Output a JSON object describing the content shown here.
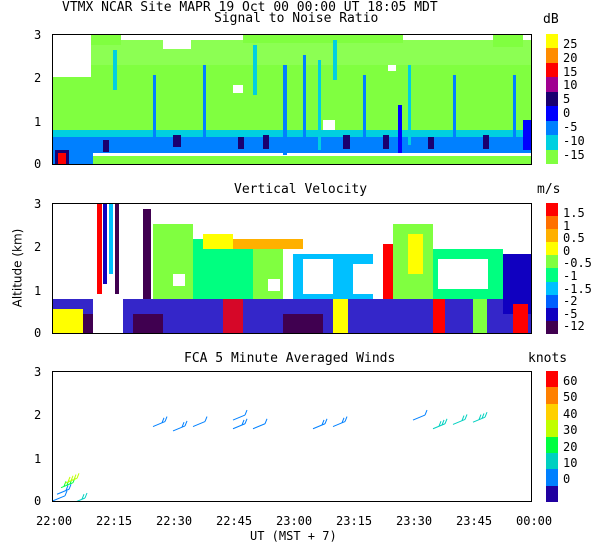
{
  "header": {
    "line1": "VTMX  NCAR Site  MAPR 19 Oct 00  00:00 UT  18:05  MDT"
  },
  "chart_data": [
    {
      "type": "heatmap",
      "title": "Signal to Noise Ratio",
      "unit": "dB",
      "xlabel": "UT  (MST + 7)",
      "ylabel": "Altitude (km)",
      "ylim": [
        0,
        3
      ],
      "yticks": [
        "0",
        "1",
        "2",
        "3"
      ],
      "colorbar": {
        "labels": [
          "25",
          "20",
          "15",
          "10",
          "5",
          "0",
          "-5",
          "-10",
          "-15"
        ],
        "colors": [
          "#ffff00",
          "#ff8c00",
          "#ff0000",
          "#a00090",
          "#1a0070",
          "#0000ff",
          "#0080ff",
          "#00d0e0",
          "#80ff40"
        ]
      }
    },
    {
      "type": "heatmap",
      "title": "Vertical Velocity",
      "unit": "m/s",
      "ylabel": "Altitude (km)",
      "ylim": [
        0,
        3
      ],
      "yticks": [
        "0",
        "1",
        "2",
        "3"
      ],
      "colorbar": {
        "labels": [
          "1.5",
          "1",
          "0.5",
          "0",
          "-0.5",
          "-1",
          "-1.5",
          "-2",
          "-5",
          "-12"
        ],
        "colors": [
          "#ff0000",
          "#ff7000",
          "#ffb000",
          "#ffff00",
          "#80ff40",
          "#00ff80",
          "#00c0ff",
          "#0060ff",
          "#1000c0",
          "#400050"
        ]
      }
    },
    {
      "type": "scatter",
      "title": "FCA 5 Minute Averaged Winds",
      "unit": "knots",
      "ylim": [
        0,
        3
      ],
      "yticks": [
        "0",
        "1",
        "2",
        "3"
      ],
      "xticks": [
        "22:00",
        "22:15",
        "22:30",
        "22:45",
        "23:00",
        "23:15",
        "23:30",
        "23:45",
        "00:00"
      ],
      "colorbar": {
        "labels": [
          "60",
          "50",
          "40",
          "30",
          "20",
          "10",
          "0"
        ],
        "colors": [
          "#ff0000",
          "#ff8000",
          "#ffd000",
          "#c0ff00",
          "#00ff40",
          "#00d0c0",
          "#0080ff",
          "#2000a0"
        ]
      },
      "wind_barbs": [
        {
          "time_min": 0,
          "alt_km": 0.05,
          "speed_kt": 10
        },
        {
          "time_min": 1,
          "alt_km": 0.2,
          "speed_kt": 15
        },
        {
          "time_min": 2,
          "alt_km": 0.35,
          "speed_kt": 35
        },
        {
          "time_min": 3,
          "alt_km": 0.45,
          "speed_kt": 40
        },
        {
          "time_min": 5,
          "alt_km": 0.0,
          "speed_kt": 20
        },
        {
          "time_min": 25,
          "alt_km": 1.75,
          "speed_kt": 15
        },
        {
          "time_min": 30,
          "alt_km": 1.65,
          "speed_kt": 15
        },
        {
          "time_min": 35,
          "alt_km": 1.75,
          "speed_kt": 10
        },
        {
          "time_min": 45,
          "alt_km": 1.9,
          "speed_kt": 10
        },
        {
          "time_min": 45,
          "alt_km": 1.7,
          "speed_kt": 15
        },
        {
          "time_min": 50,
          "alt_km": 1.7,
          "speed_kt": 10
        },
        {
          "time_min": 65,
          "alt_km": 1.7,
          "speed_kt": 15
        },
        {
          "time_min": 70,
          "alt_km": 1.75,
          "speed_kt": 15
        },
        {
          "time_min": 90,
          "alt_km": 1.9,
          "speed_kt": 10
        },
        {
          "time_min": 95,
          "alt_km": 1.7,
          "speed_kt": 25
        },
        {
          "time_min": 100,
          "alt_km": 1.8,
          "speed_kt": 20
        },
        {
          "time_min": 105,
          "alt_km": 1.85,
          "speed_kt": 25
        }
      ]
    }
  ]
}
